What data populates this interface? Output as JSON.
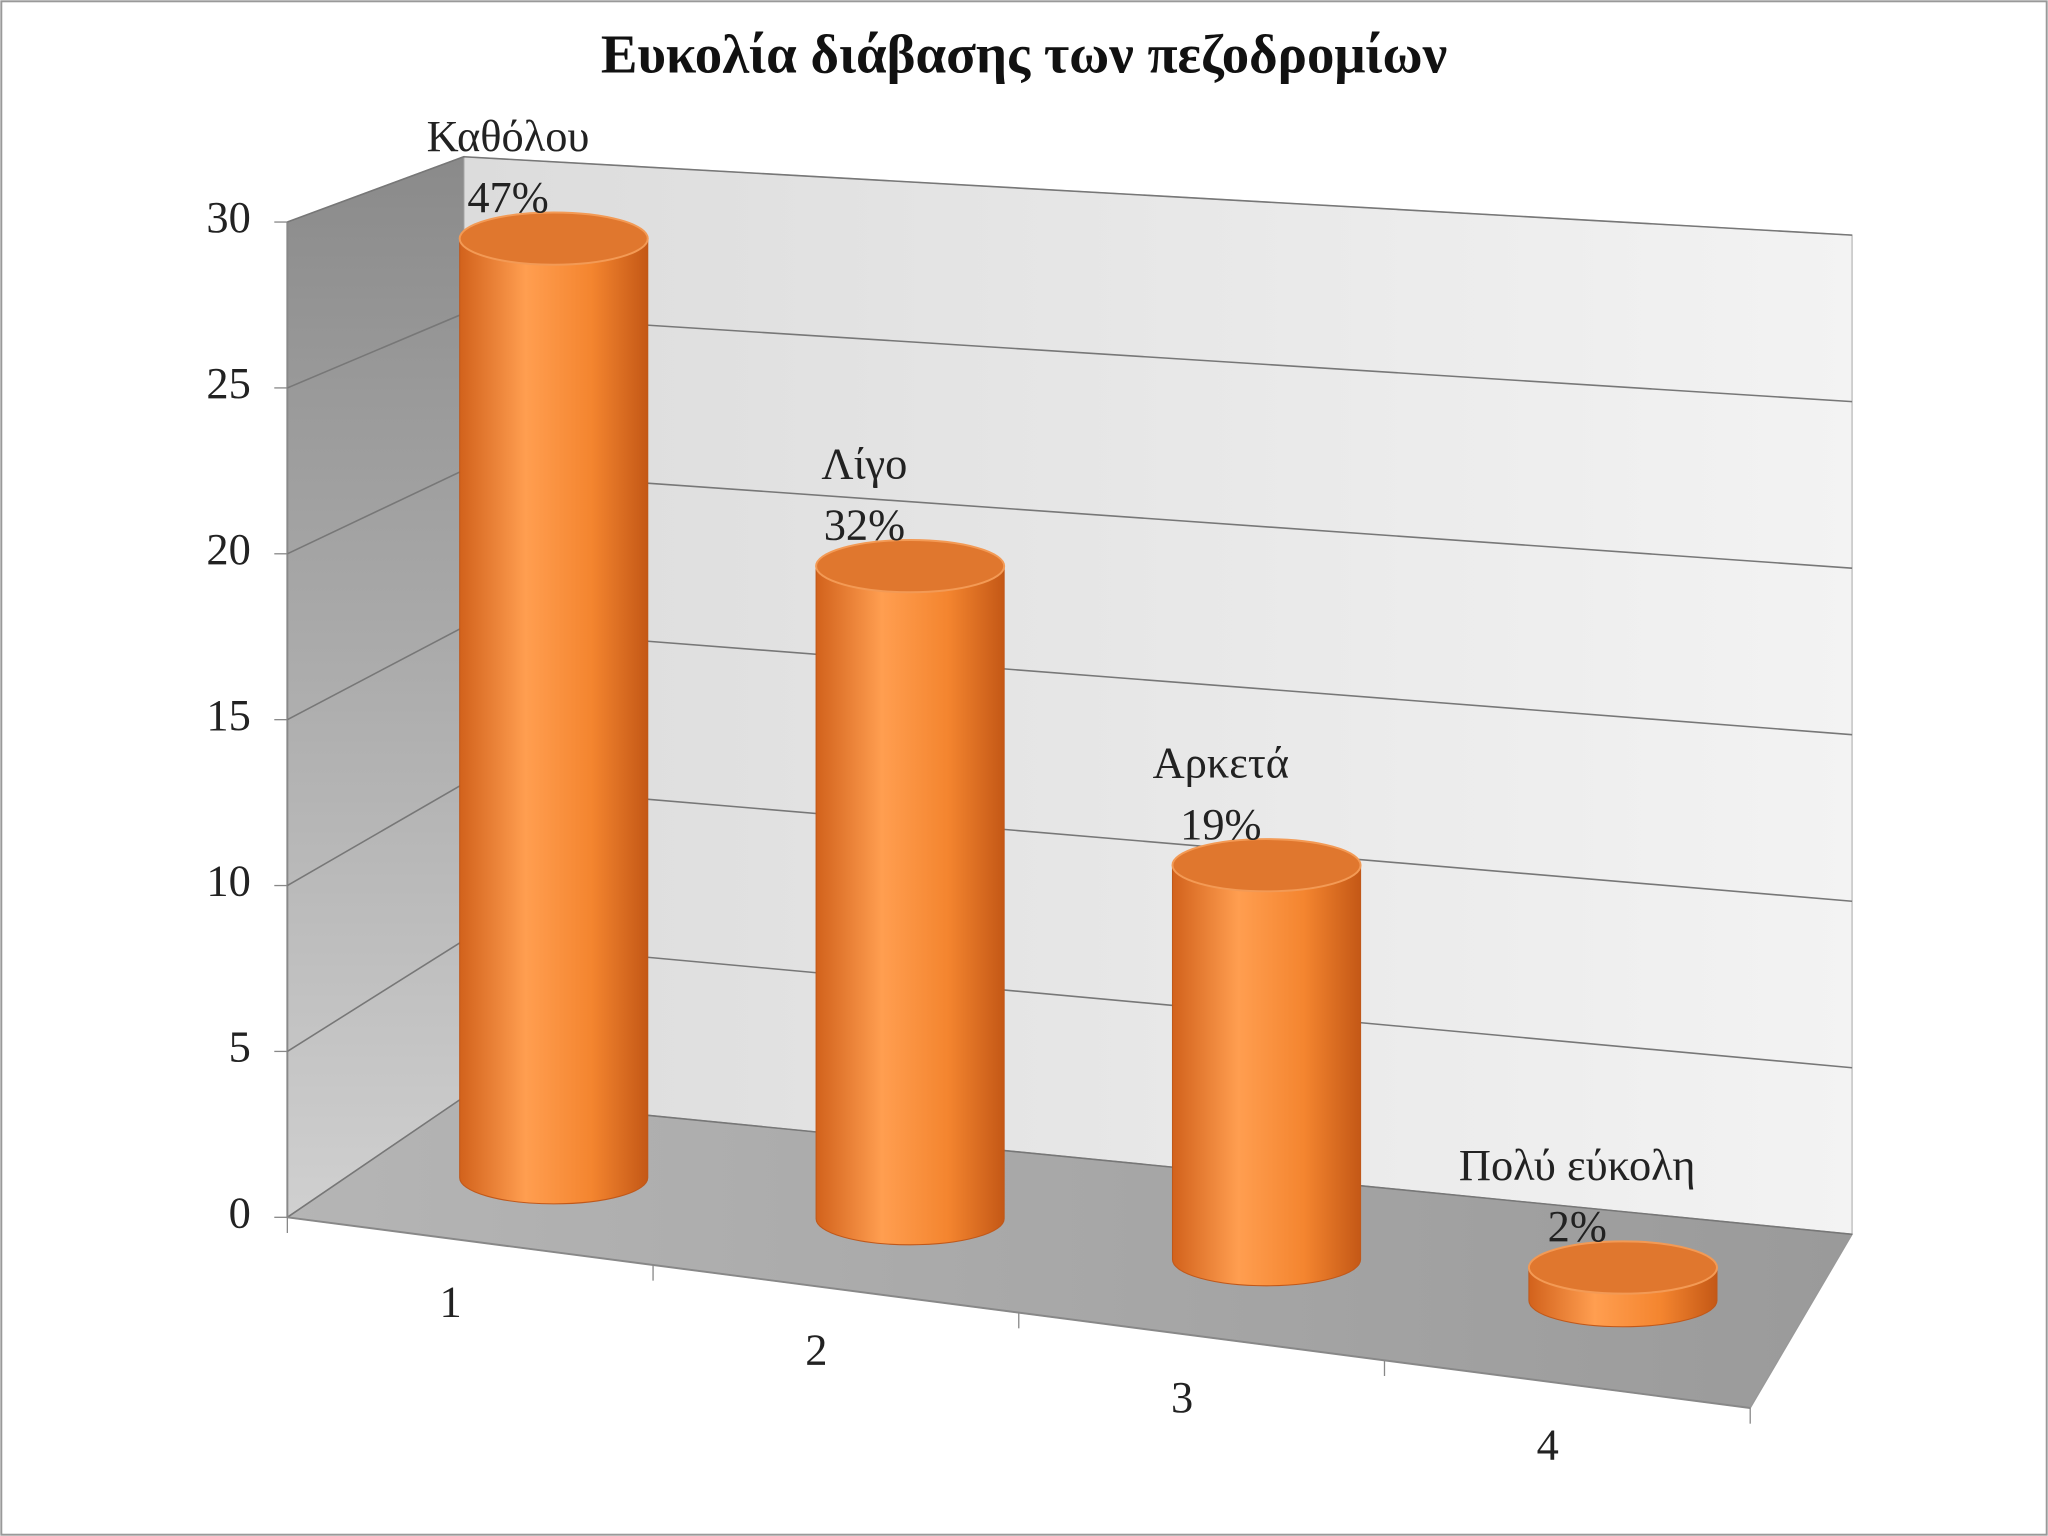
{
  "chart_data": {
    "type": "bar3d-cylinder",
    "title": "Ευκολία διάβασης των πεζοδρομίων",
    "categories": [
      "1",
      "2",
      "3",
      "4"
    ],
    "values": [
      29,
      20,
      12,
      1
    ],
    "color": "#f58a3a",
    "data_labels": [
      {
        "name": "Καθόλου",
        "share": "47%"
      },
      {
        "name": "Λίγο",
        "share": "32%"
      },
      {
        "name": "Αρκετά",
        "share": "19%"
      },
      {
        "name": "Πολύ εύκολη",
        "share": "2%"
      }
    ],
    "ylim": [
      0,
      30
    ],
    "yticks": [
      0,
      5,
      10,
      15,
      20,
      25,
      30
    ],
    "grid": true
  }
}
